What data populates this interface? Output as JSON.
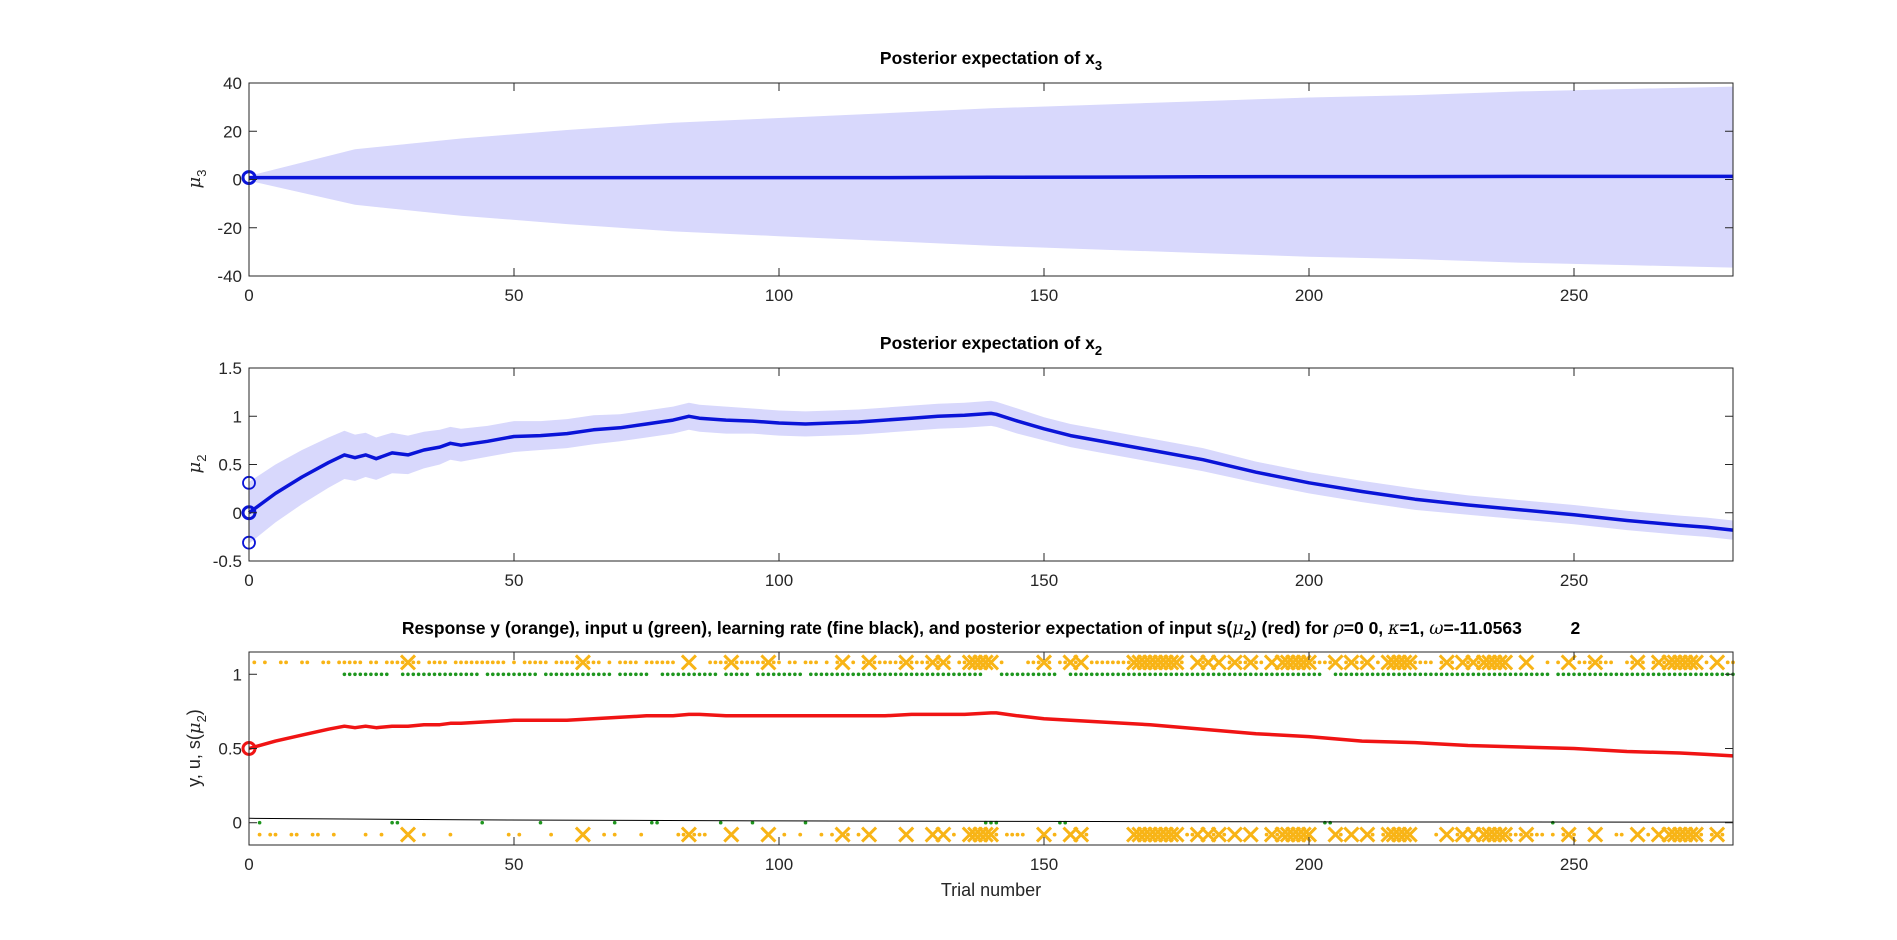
{
  "figure": {
    "xlabel": "Trial number",
    "xticks": [
      "0",
      "50",
      "100",
      "150",
      "200",
      "250"
    ]
  },
  "panels": {
    "top": {
      "title_main": "Posterior expectation of x",
      "title_sub": "3",
      "ylabel_sym": "μ",
      "ylabel_sub": "3",
      "yticks": [
        "40",
        "20",
        "0",
        "-20",
        "-40"
      ]
    },
    "middle": {
      "title_main": "Posterior expectation of x",
      "title_sub": "2",
      "ylabel_sym": "μ",
      "ylabel_sub": "2",
      "yticks": [
        "1.5",
        "1",
        "0.5",
        "0",
        "-0.5"
      ]
    },
    "bottom": {
      "title_a": "Response y (orange), input u (green), learning rate (fine black), and posterior expectation of input s(",
      "title_mu": "μ",
      "title_mu_sub": "2",
      "title_b": ") (red) for ",
      "title_rho": "ρ",
      "title_c": "=0  0, ",
      "title_kappa": "κ",
      "title_d": "=1, ",
      "title_omega": "ω",
      "title_e": "=-11.0563          2",
      "ylabel_a": "y, u, s(",
      "ylabel_mu": "μ",
      "ylabel_sub": "2",
      "ylabel_b": ")",
      "yticks": [
        "1",
        "0.5",
        "0"
      ]
    }
  },
  "colors": {
    "band": "#d8d8fc",
    "mu_line": "#0a14d8",
    "red": "#f01414",
    "orange": "#f8b416",
    "green": "#1e961e",
    "black": "#000000"
  },
  "chart_data": [
    {
      "type": "line",
      "title": "Posterior expectation of x3",
      "ylabel": "μ3",
      "xlim": [
        0,
        280
      ],
      "ylim": [
        -40,
        40
      ],
      "series": [
        {
          "values_x": [
            0,
            20,
            40,
            60,
            80,
            100,
            120,
            140,
            160,
            180,
            200,
            220,
            240,
            260,
            280
          ],
          "values": [
            0.8,
            0.8,
            0.8,
            0.8,
            0.8,
            0.8,
            0.8,
            0.9,
            1.0,
            1.1,
            1.2,
            1.2,
            1.3,
            1.3,
            1.3
          ],
          "band_upper": [
            1.5,
            12.5,
            17,
            20.5,
            23.5,
            25.5,
            27.5,
            29.5,
            31,
            32.5,
            34,
            35,
            36.5,
            37.5,
            38.5
          ],
          "band_lower": [
            -0.5,
            -10.5,
            -15,
            -18.5,
            -21.5,
            -23.5,
            -25.5,
            -27.5,
            -29,
            -30.5,
            -32,
            -33,
            -34.5,
            -35.5,
            -36.5
          ]
        }
      ],
      "initial_marker": 0.8
    },
    {
      "type": "line",
      "title": "Posterior expectation of x2",
      "ylabel": "μ2",
      "xlim": [
        0,
        280
      ],
      "ylim": [
        -0.5,
        1.5
      ],
      "series": [
        {
          "values_x": [
            0,
            5,
            10,
            15,
            18,
            20,
            22,
            24,
            27,
            30,
            33,
            36,
            38,
            40,
            45,
            50,
            55,
            60,
            65,
            70,
            75,
            80,
            83,
            85,
            90,
            95,
            100,
            105,
            110,
            115,
            120,
            125,
            130,
            135,
            140,
            141,
            145,
            150,
            155,
            160,
            170,
            180,
            190,
            200,
            210,
            220,
            230,
            240,
            250,
            260,
            270,
            275,
            280
          ],
          "values": [
            0.0,
            0.2,
            0.37,
            0.52,
            0.6,
            0.57,
            0.6,
            0.56,
            0.62,
            0.6,
            0.65,
            0.68,
            0.72,
            0.7,
            0.74,
            0.79,
            0.8,
            0.82,
            0.86,
            0.88,
            0.92,
            0.96,
            1.0,
            0.98,
            0.96,
            0.95,
            0.93,
            0.92,
            0.93,
            0.94,
            0.96,
            0.98,
            1.0,
            1.01,
            1.03,
            1.02,
            0.95,
            0.87,
            0.8,
            0.75,
            0.65,
            0.55,
            0.42,
            0.31,
            0.22,
            0.14,
            0.08,
            0.03,
            -0.02,
            -0.08,
            -0.13,
            -0.15,
            -0.18
          ],
          "band_halfwidth": [
            0.32,
            0.3,
            0.28,
            0.26,
            0.25,
            0.24,
            0.23,
            0.22,
            0.21,
            0.2,
            0.19,
            0.18,
            0.17,
            0.17,
            0.16,
            0.16,
            0.15,
            0.15,
            0.15,
            0.14,
            0.14,
            0.14,
            0.14,
            0.14,
            0.14,
            0.13,
            0.13,
            0.13,
            0.13,
            0.13,
            0.13,
            0.13,
            0.13,
            0.13,
            0.13,
            0.13,
            0.13,
            0.12,
            0.12,
            0.12,
            0.12,
            0.12,
            0.11,
            0.11,
            0.11,
            0.11,
            0.1,
            0.1,
            0.1,
            0.1,
            0.1,
            0.1,
            0.1
          ]
        }
      ],
      "initial_markers": [
        0.31,
        0.0,
        -0.31
      ]
    },
    {
      "type": "scatter",
      "title": "Response y (orange), input u (green), learning rate (fine black), and posterior expectation of input s(μ2) (red) for ρ=0 0, κ=1, ω=-11.0563 2",
      "xlabel": "Trial number",
      "ylabel": "y, u, s(μ2)",
      "xlim": [
        0,
        280
      ],
      "ylim": [
        -0.15,
        1.15
      ],
      "s_mu2": {
        "x": [
          0,
          5,
          10,
          15,
          18,
          20,
          22,
          24,
          27,
          30,
          33,
          36,
          38,
          40,
          45,
          50,
          55,
          60,
          65,
          70,
          75,
          80,
          83,
          85,
          90,
          95,
          100,
          105,
          110,
          115,
          120,
          125,
          130,
          135,
          140,
          141,
          145,
          150,
          155,
          160,
          170,
          180,
          190,
          200,
          210,
          220,
          230,
          240,
          250,
          260,
          270,
          275,
          280
        ],
        "y": [
          0.5,
          0.55,
          0.59,
          0.63,
          0.65,
          0.64,
          0.65,
          0.64,
          0.65,
          0.65,
          0.66,
          0.66,
          0.67,
          0.67,
          0.68,
          0.69,
          0.69,
          0.69,
          0.7,
          0.71,
          0.72,
          0.72,
          0.73,
          0.73,
          0.72,
          0.72,
          0.72,
          0.72,
          0.72,
          0.72,
          0.72,
          0.73,
          0.73,
          0.73,
          0.74,
          0.74,
          0.72,
          0.7,
          0.69,
          0.68,
          0.66,
          0.63,
          0.6,
          0.58,
          0.55,
          0.54,
          0.52,
          0.51,
          0.5,
          0.48,
          0.47,
          0.46,
          0.45
        ]
      },
      "learning_rate": {
        "x": [
          0,
          40,
          100,
          160,
          220,
          280
        ],
        "y": [
          0.03,
          0.02,
          0.012,
          0.008,
          0.005,
          0.004
        ]
      },
      "response_x_trials": [
        30,
        63,
        83,
        91,
        98,
        112,
        117,
        124,
        129,
        131,
        136,
        137,
        138,
        139,
        140,
        150,
        155,
        157,
        167,
        168,
        169,
        170,
        171,
        172,
        173,
        174,
        175,
        179,
        181,
        183,
        186,
        189,
        193,
        195,
        196,
        197,
        198,
        199,
        200,
        205,
        208,
        211,
        215,
        216,
        217,
        218,
        219,
        226,
        229,
        231,
        233,
        234,
        235,
        236,
        237,
        241,
        249,
        254,
        262,
        266,
        268,
        269,
        270,
        271,
        272,
        273,
        277
      ],
      "u_one_ranges": [
        [
          18,
          26
        ],
        [
          29,
          43
        ],
        [
          45,
          54
        ],
        [
          56,
          68
        ],
        [
          70,
          75
        ],
        [
          78,
          88
        ],
        [
          90,
          94
        ],
        [
          96,
          104
        ],
        [
          106,
          138
        ],
        [
          142,
          152
        ],
        [
          155,
          202
        ],
        [
          205,
          245
        ],
        [
          247,
          280
        ]
      ]
    }
  ]
}
